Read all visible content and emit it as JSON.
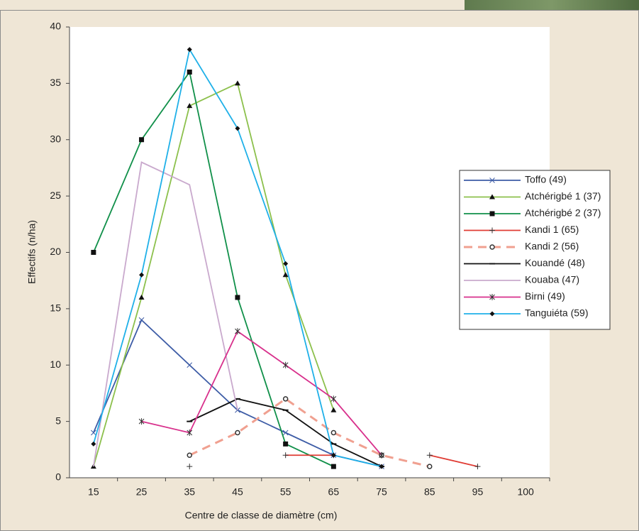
{
  "chart_data": {
    "type": "line",
    "x_label": "Centre de classe de diamètre (cm)",
    "y_label": "Effectifs (n/ha)",
    "categories": [
      "15",
      "25",
      "35",
      "45",
      "55",
      "65",
      "75",
      "85",
      "95",
      "100"
    ],
    "ylim": [
      0,
      40
    ],
    "yticks": [
      0,
      5,
      10,
      15,
      20,
      25,
      30,
      35,
      40
    ],
    "series": [
      {
        "name": "Toffo (49)",
        "color": "#3d5ca6",
        "marker": "x",
        "values": [
          4,
          14,
          10,
          6,
          4,
          2,
          1,
          null,
          null,
          null
        ]
      },
      {
        "name": "Atchérigbé 1 (37)",
        "color": "#8cc04c",
        "marker": "triangle",
        "values": [
          1,
          16,
          33,
          35,
          18,
          6,
          null,
          null,
          null,
          null
        ]
      },
      {
        "name": "Atchérigbé 2 (37)",
        "color": "#11904a",
        "marker": "square",
        "values": [
          20,
          30,
          36,
          16,
          3,
          1,
          null,
          null,
          null,
          null
        ]
      },
      {
        "name": "Kandi 1 (65)",
        "color": "#e03c34",
        "marker": "plus",
        "values": [
          null,
          null,
          1,
          null,
          2,
          2,
          null,
          2,
          1,
          null
        ]
      },
      {
        "name": "Kandi 2 (56)",
        "color": "#f0a090",
        "marker": "circle",
        "dashed": true,
        "values": [
          null,
          null,
          2,
          4,
          7,
          4,
          2,
          1,
          null,
          null
        ]
      },
      {
        "name": "Kouandé (48)",
        "color": "#111111",
        "marker": "dash",
        "values": [
          null,
          null,
          5,
          7,
          6,
          3,
          1,
          null,
          null,
          null
        ]
      },
      {
        "name": "Kouaba (47)",
        "color": "#c9a9cd",
        "marker": "none",
        "values": [
          1,
          28,
          26,
          6,
          null,
          null,
          null,
          null,
          null,
          null
        ]
      },
      {
        "name": "Birni (49)",
        "color": "#d8308c",
        "marker": "star",
        "values": [
          null,
          5,
          4,
          13,
          10,
          7,
          2,
          null,
          null,
          null
        ]
      },
      {
        "name": "Tanguiéta (59)",
        "color": "#1fb0e8",
        "marker": "diamond",
        "values": [
          3,
          18,
          38,
          31,
          19,
          2,
          1,
          null,
          null,
          null
        ]
      }
    ]
  }
}
